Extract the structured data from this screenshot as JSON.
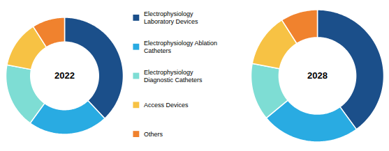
{
  "chart_data": [
    {
      "type": "pie",
      "title": "2022",
      "categories": [
        "Electrophysiology\nLaboratory Devices",
        "Electrophysiology Ablation\nCatheters",
        "Electrophysiology\nDiagnostic Catheters",
        "Access Devices",
        "Others"
      ],
      "values": [
        38,
        22,
        18,
        13,
        9
      ],
      "colors": [
        "#1b4f8a",
        "#29abe2",
        "#7eddd4",
        "#f7c244",
        "#f0822e"
      ],
      "legend": "right"
    },
    {
      "type": "pie",
      "title": "2028",
      "categories": [
        "Electrophysiology\nLaboratory Devices",
        "Electrophysiology Ablation\nCatheters",
        "Electrophysiology\nDiagnostic Catheters",
        "Access Devices",
        "Others"
      ],
      "values": [
        40,
        24,
        14,
        13,
        9
      ],
      "colors": [
        "#1b4f8a",
        "#29abe2",
        "#7eddd4",
        "#f7c244",
        "#f0822e"
      ]
    }
  ]
}
